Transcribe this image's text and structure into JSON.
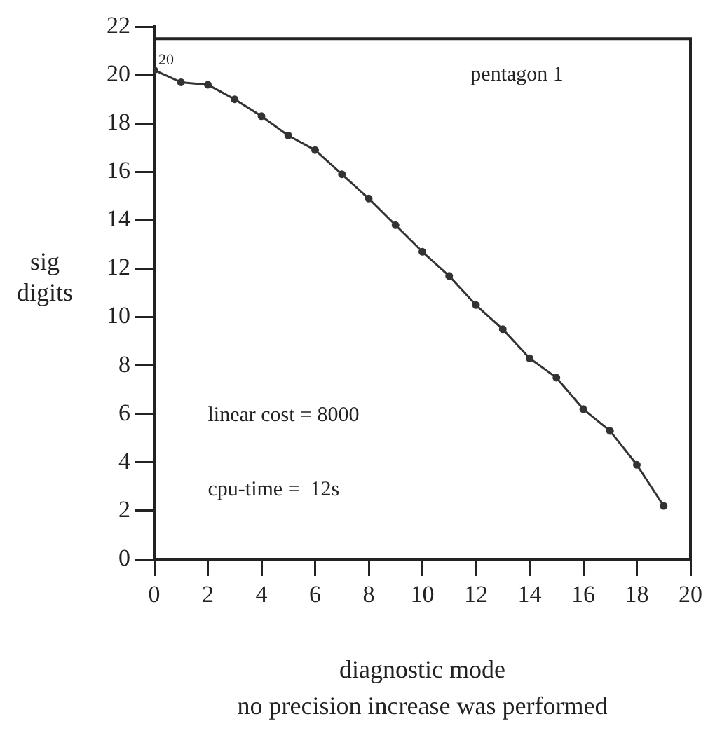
{
  "chart_data": {
    "type": "line",
    "title": "pentagon 1",
    "xlabel": "diagnostic mode",
    "ylabel": "sig\ndigits",
    "x": [
      0,
      1,
      2,
      3,
      4,
      5,
      6,
      7,
      8,
      9,
      10,
      11,
      12,
      13,
      14,
      15,
      16,
      17,
      18,
      19
    ],
    "series": [
      {
        "color": "#333333",
        "values": [
          20.2,
          19.7,
          19.6,
          19.0,
          18.3,
          17.5,
          16.9,
          15.9,
          14.9,
          13.8,
          12.7,
          11.7,
          10.5,
          9.5,
          8.3,
          7.5,
          6.2,
          5.3,
          3.9,
          2.2
        ]
      }
    ],
    "xlim": [
      0,
      20
    ],
    "xticks": [
      0,
      2,
      4,
      6,
      8,
      10,
      12,
      14,
      16,
      18,
      20
    ],
    "ylim": [
      0,
      22
    ],
    "yticks": [
      0,
      2,
      4,
      6,
      8,
      10,
      12,
      14,
      16,
      18,
      20,
      22
    ],
    "annotations": [
      {
        "text": "20",
        "x": 0,
        "y": 20.2
      },
      "linear cost = 8000",
      "cpu-time =  12s",
      "no precision increase was performed"
    ],
    "grid": false,
    "legend": false,
    "marker": "circle",
    "line_style": "solid"
  }
}
